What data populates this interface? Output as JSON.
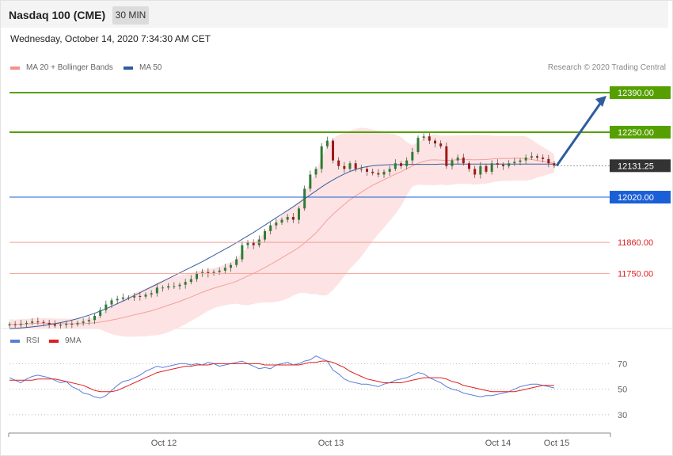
{
  "header": {
    "title": "Nasdaq 100 (CME)",
    "timeframe": "30 MIN"
  },
  "timestamp": "Wednesday, October 14, 2020 7:34:30 AM CET",
  "legend": {
    "items": [
      {
        "label": "MA 20 + Bollinger Bands",
        "color": "#f4918a"
      },
      {
        "label": "MA 50",
        "color": "#2f5c9e"
      }
    ],
    "credit": "Research © 2020 Trading Central"
  },
  "rsi_legend": {
    "items": [
      {
        "label": "RSI",
        "color": "#5b7fd9"
      },
      {
        "label": "9MA",
        "color": "#e02020"
      }
    ]
  },
  "chart_data": [
    {
      "type": "candlestick",
      "price_range": [
        11555,
        12460
      ],
      "levels": [
        {
          "value": 12390.0,
          "label": "12390.00",
          "kind": "target",
          "color": "#55a000"
        },
        {
          "value": 12250.0,
          "label": "12250.00",
          "kind": "resistance",
          "color": "#55a000"
        },
        {
          "value": 12131.25,
          "label": "12131.25",
          "kind": "last-price",
          "color": "#333333"
        },
        {
          "value": 12020.0,
          "label": "12020.00",
          "kind": "pivot",
          "color": "#1a5fd6"
        },
        {
          "value": 11860.0,
          "label": "11860.00",
          "kind": "support",
          "color": "#e02020"
        },
        {
          "value": 11750.0,
          "label": "11750.00",
          "kind": "support",
          "color": "#e02020"
        }
      ],
      "close_series": [
        11570,
        11568,
        11572,
        11575,
        11580,
        11578,
        11575,
        11570,
        11565,
        11568,
        11572,
        11570,
        11575,
        11580,
        11585,
        11600,
        11620,
        11640,
        11655,
        11660,
        11665,
        11665,
        11670,
        11668,
        11675,
        11680,
        11700,
        11700,
        11705,
        11705,
        11710,
        11720,
        11730,
        11750,
        11755,
        11750,
        11755,
        11760,
        11770,
        11780,
        11800,
        11850,
        11860,
        11850,
        11870,
        11900,
        11920,
        11930,
        11940,
        11950,
        11940,
        11980,
        12050,
        12100,
        12120,
        12200,
        12220,
        12150,
        12130,
        12120,
        12140,
        12120,
        12120,
        12110,
        12105,
        12100,
        12110,
        12120,
        12140,
        12130,
        12150,
        12180,
        12230,
        12235,
        12220,
        12210,
        12200,
        12130,
        12150,
        12160,
        12140,
        12120,
        12100,
        12130,
        12110,
        12140,
        12135,
        12130,
        12140,
        12145,
        12150,
        12160,
        12165,
        12160,
        12155,
        12140,
        12131.25
      ],
      "ma50_series": [
        11555,
        11556,
        11557,
        11559,
        11561,
        11563,
        11566,
        11569,
        11572,
        11576,
        11580,
        11585,
        11590,
        11596,
        11602,
        11609,
        11617,
        11625,
        11634,
        11643,
        11652,
        11662,
        11672,
        11682,
        11692,
        11702,
        11712,
        11722,
        11732,
        11742,
        11752,
        11762,
        11772,
        11782,
        11792,
        11803,
        11814,
        11825,
        11836,
        11847,
        11859,
        11871,
        11883,
        11895,
        11908,
        11921,
        11934,
        11947,
        11960,
        11973,
        11986,
        12000,
        12014,
        12028,
        12042,
        12056,
        12069,
        12081,
        12092,
        12102,
        12111,
        12118,
        12124,
        12128,
        12131,
        12133,
        12134,
        12135,
        12135,
        12135,
        12136,
        12136,
        12136,
        12136,
        12136,
        12136,
        12137,
        12137,
        12137,
        12137,
        12137,
        12137,
        12137,
        12137,
        12137,
        12137,
        12137,
        12137,
        12137,
        12137,
        12137,
        12137,
        12137,
        12137,
        12137,
        12137,
        12137
      ],
      "price_x_labels": [
        "Oct 12",
        "Oct 13",
        "Oct 14",
        "Oct 15"
      ]
    },
    {
      "type": "line",
      "name": "RSI",
      "y_ticks": [
        30,
        50,
        70
      ],
      "ylim": [
        20,
        82
      ],
      "rsi": [
        59,
        57,
        55,
        58,
        60,
        61,
        60,
        59,
        57,
        55,
        56,
        52,
        50,
        47,
        46,
        44,
        43,
        45,
        49,
        53,
        56,
        57,
        59,
        61,
        64,
        66,
        68,
        67,
        68,
        69,
        70,
        70,
        69,
        70,
        69,
        71,
        70,
        68,
        69,
        70,
        71,
        72,
        70,
        68,
        66,
        67,
        66,
        69,
        70,
        71,
        69,
        70,
        72,
        73,
        76,
        74,
        72,
        65,
        62,
        58,
        56,
        55,
        54,
        54,
        53,
        52,
        54,
        55,
        57,
        58,
        59,
        61,
        63,
        62,
        59,
        57,
        55,
        52,
        50,
        49,
        47,
        46,
        45,
        44,
        45,
        45,
        46,
        47,
        48,
        50,
        52,
        53,
        54,
        54,
        53,
        52,
        51
      ],
      "ma9": [
        57,
        57,
        57,
        57,
        57,
        58,
        58,
        58,
        58,
        57,
        56,
        55,
        54,
        53,
        51,
        49,
        48,
        48,
        48,
        49,
        51,
        53,
        55,
        57,
        59,
        61,
        63,
        64,
        65,
        66,
        67,
        68,
        68,
        69,
        69,
        69,
        70,
        70,
        70,
        70,
        70,
        70,
        70,
        70,
        70,
        69,
        69,
        69,
        69,
        69,
        69,
        69,
        70,
        71,
        71,
        72,
        72,
        71,
        69,
        67,
        64,
        62,
        60,
        58,
        57,
        56,
        55,
        55,
        55,
        55,
        56,
        57,
        58,
        59,
        59,
        59,
        59,
        58,
        56,
        55,
        53,
        52,
        51,
        50,
        49,
        48,
        48,
        48,
        48,
        48,
        49,
        50,
        51,
        52,
        53,
        53,
        53
      ],
      "x_labels": [
        "Oct 12",
        "Oct 13",
        "Oct 14",
        "Oct 15"
      ]
    }
  ]
}
